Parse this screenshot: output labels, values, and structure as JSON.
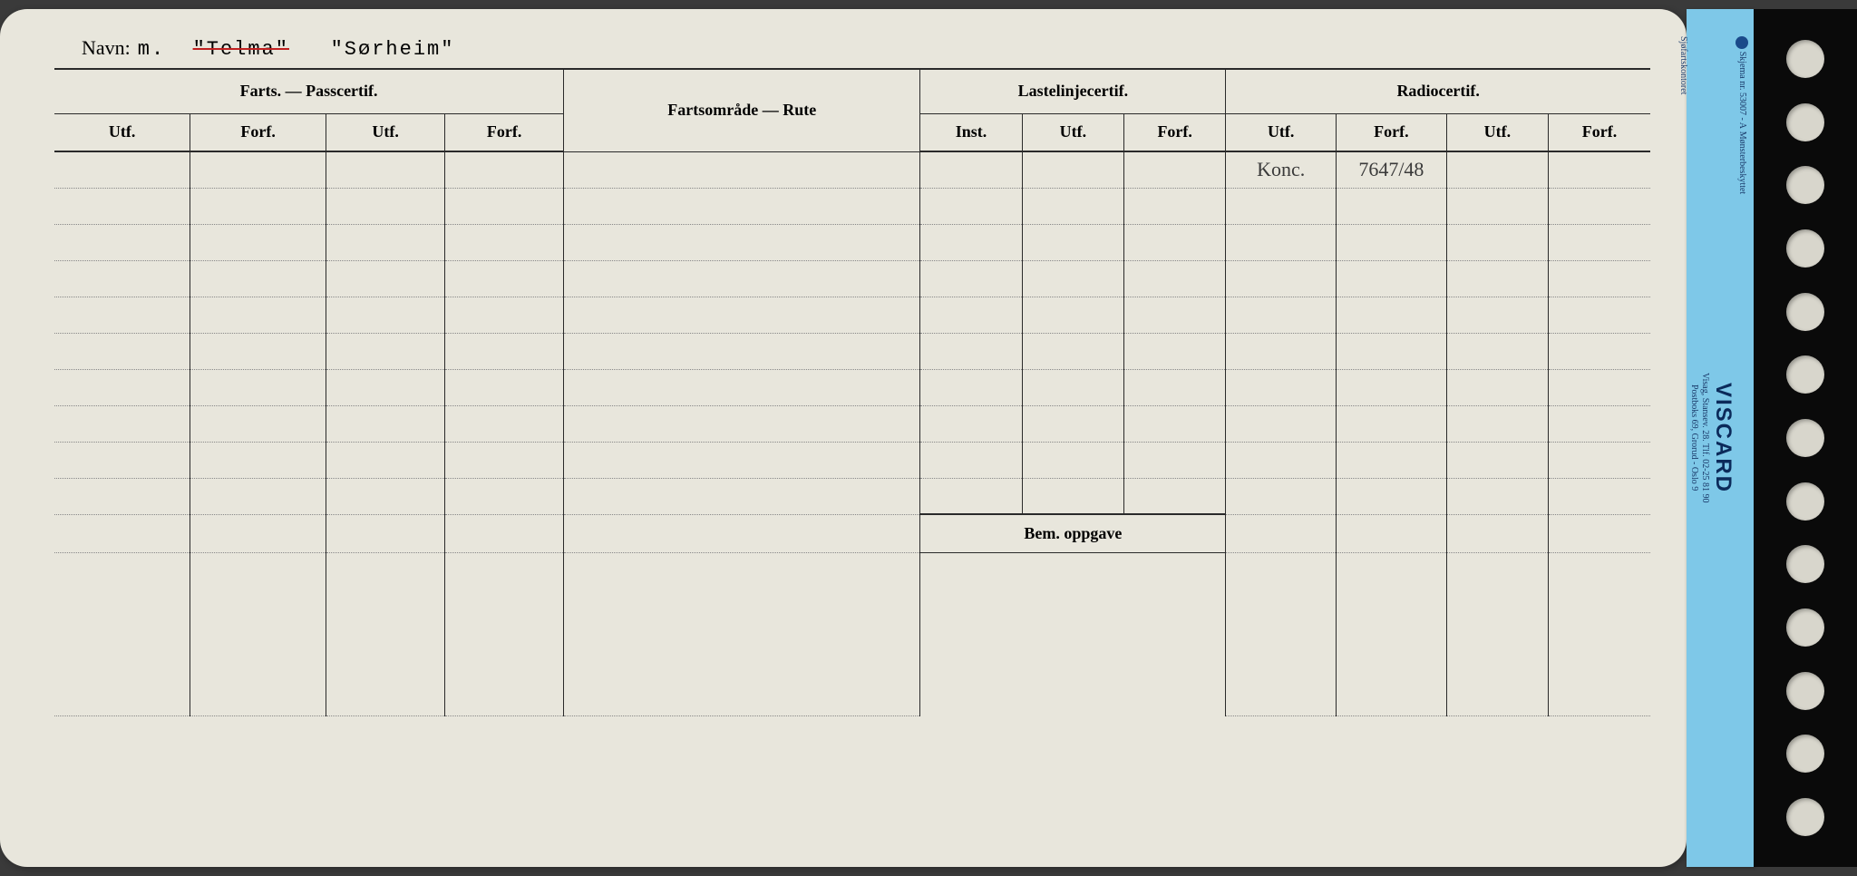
{
  "name": {
    "label": "Navn:",
    "prefix": "m.",
    "struck": "\"Telma\"",
    "current": "\"Sørheim\""
  },
  "sections": {
    "farts_pass": {
      "title": "Farts. — Passcertif.",
      "subs": [
        "Utf.",
        "Forf.",
        "Utf.",
        "Forf."
      ]
    },
    "rute": {
      "title": "Fartsområde — Rute"
    },
    "laste": {
      "title": "Lastelinjecertif.",
      "subs": [
        "Inst.",
        "Utf.",
        "Forf."
      ]
    },
    "radio": {
      "title": "Radiocertif.",
      "subs": [
        "Utf.",
        "Forf.",
        "Utf.",
        "Forf."
      ]
    },
    "bem": {
      "title": "Bem. oppgave"
    }
  },
  "entries": {
    "radio_row1_utf1": "Konc.",
    "radio_row1_forf1": "7647/48"
  },
  "tab": {
    "top_line1": "Skjema nr. 53007 - A",
    "top_line2": "Mønsterbeskyttet",
    "logo": "VISCARD",
    "addr1": "Visag, Stansev. 28. Tlf. 02-25 81 90",
    "addr2": "Postboks 69, Grorud - Oslo 9",
    "bottom": "Sjøfartskontoret"
  },
  "layout": {
    "body_rows": 10,
    "punch_holes": 13,
    "colors": {
      "card_bg": "#e8e6dc",
      "tab_bg": "#7ec8e8",
      "punch_bg": "#0a0a0a",
      "strike_color": "#c02020",
      "line_color": "#2a2a2a"
    },
    "col_widths_pct": {
      "farts_pass_each": 7.3,
      "rute": 20.8,
      "laste_each": 6.2,
      "radio_each": 6.2
    }
  }
}
